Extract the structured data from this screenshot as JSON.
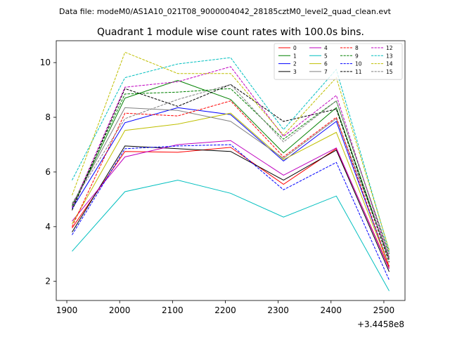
{
  "suptitle": "Data file: modeM0/AS1A10_021T08_9000004042_28185cztM0_level2_quad_clean.evt",
  "chart_data": {
    "type": "line",
    "title": "Quadrant 1 module wise count rates with 100.0s bins.",
    "xlabel": "",
    "ylabel": "",
    "x_offset_label": "+3.4458e8",
    "x": [
      1910,
      2010,
      2110,
      2210,
      2310,
      2410,
      2510
    ],
    "xlim": [
      1880,
      2540
    ],
    "ylim": [
      1.3,
      10.8
    ],
    "xticks": [
      1900,
      2000,
      2100,
      2200,
      2300,
      2400,
      2500
    ],
    "yticks": [
      2,
      4,
      6,
      8,
      10
    ],
    "grid": false,
    "legend_placement": "upper-right",
    "legend_columns": 4,
    "series": [
      {
        "name": "0",
        "color": "#ff0000",
        "dash": "solid",
        "values": [
          3.95,
          6.75,
          6.72,
          6.9,
          5.55,
          6.85,
          2.5
        ]
      },
      {
        "name": "1",
        "color": "#008000",
        "dash": "solid",
        "values": [
          4.7,
          8.7,
          9.35,
          8.65,
          6.7,
          8.35,
          2.8
        ]
      },
      {
        "name": "2",
        "color": "#0000ff",
        "dash": "solid",
        "values": [
          4.65,
          7.8,
          8.35,
          8.1,
          6.4,
          7.85,
          2.55
        ]
      },
      {
        "name": "3",
        "color": "#000000",
        "dash": "solid",
        "values": [
          3.8,
          6.95,
          6.85,
          6.75,
          5.7,
          6.8,
          2.35
        ]
      },
      {
        "name": "4",
        "color": "#bf00bf",
        "dash": "solid",
        "values": [
          4.2,
          6.55,
          7.0,
          7.15,
          5.88,
          6.88,
          2.45
        ]
      },
      {
        "name": "5",
        "color": "#00bfbf",
        "dash": "solid",
        "values": [
          3.1,
          5.28,
          5.7,
          5.22,
          4.35,
          5.12,
          1.65
        ]
      },
      {
        "name": "6",
        "color": "#bfbf00",
        "dash": "solid",
        "values": [
          4.1,
          7.52,
          7.75,
          8.15,
          6.45,
          7.45,
          2.55
        ]
      },
      {
        "name": "7",
        "color": "#808080",
        "dash": "solid",
        "values": [
          4.8,
          8.35,
          8.25,
          7.85,
          6.5,
          7.95,
          2.9
        ]
      },
      {
        "name": "8",
        "color": "#ff0000",
        "dash": "dashed",
        "values": [
          4.0,
          8.15,
          8.05,
          8.6,
          6.55,
          8.0,
          2.55
        ]
      },
      {
        "name": "9",
        "color": "#008000",
        "dash": "dashed",
        "values": [
          4.75,
          8.85,
          8.92,
          9.05,
          7.2,
          8.6,
          3.0
        ]
      },
      {
        "name": "10",
        "color": "#0000ff",
        "dash": "dashed",
        "values": [
          3.7,
          6.85,
          6.95,
          7.0,
          5.35,
          6.35,
          2.05
        ]
      },
      {
        "name": "11",
        "color": "#000000",
        "dash": "dashed",
        "values": [
          4.6,
          9.05,
          8.4,
          9.2,
          7.85,
          8.3,
          2.7
        ]
      },
      {
        "name": "12",
        "color": "#bf00bf",
        "dash": "dashed",
        "values": [
          4.7,
          9.1,
          9.3,
          9.85,
          7.3,
          8.8,
          2.85
        ]
      },
      {
        "name": "13",
        "color": "#00bfbf",
        "dash": "dashed",
        "values": [
          5.7,
          9.45,
          9.95,
          10.18,
          7.55,
          9.75,
          3.1
        ]
      },
      {
        "name": "14",
        "color": "#bfbf00",
        "dash": "dashed",
        "values": [
          5.15,
          10.38,
          9.6,
          9.6,
          7.35,
          9.45,
          3.15
        ]
      },
      {
        "name": "15",
        "color": "#808080",
        "dash": "dashed",
        "values": [
          4.85,
          7.95,
          8.65,
          9.2,
          7.1,
          8.6,
          3.05
        ]
      }
    ]
  }
}
